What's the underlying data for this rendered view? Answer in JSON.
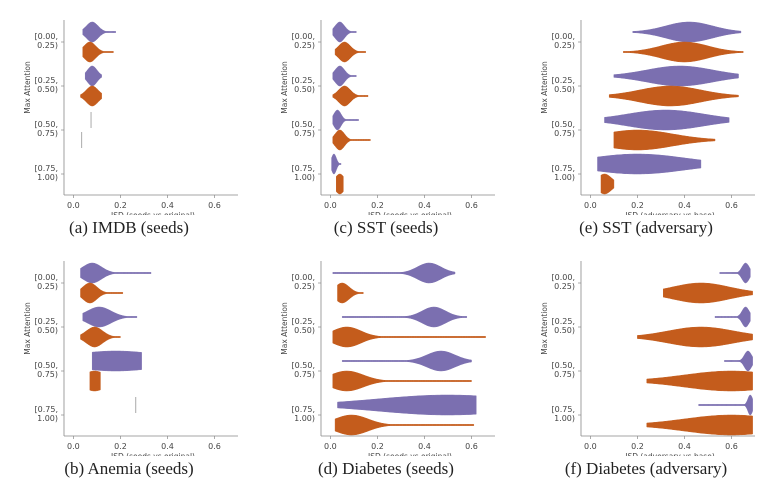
{
  "chart_data": [
    {
      "id": "a",
      "type": "violin",
      "caption": "(a) IMDB (seeds)",
      "xlabel": "JSD (seeds vs original)",
      "ylabel": "Max Attention",
      "xlim": [
        -0.04,
        0.7
      ],
      "xticks": [
        "0.0",
        "0.2",
        "0.4",
        "0.6"
      ],
      "xtick_values": [
        0.0,
        0.2,
        0.4,
        0.6
      ],
      "categories": [
        "[0.00,\n0.25)",
        "[0.25,\n0.50)",
        "[0.50,\n0.75)",
        "[0.75,\n1.00)"
      ],
      "series": [
        {
          "name": "purple",
          "color": "#7b6fb0",
          "violins": [
            {
              "min": 0.04,
              "max": 0.18,
              "peak": 0.08,
              "spread": 0.025
            },
            {
              "min": 0.05,
              "max": 0.12,
              "peak": 0.08,
              "spread": 0.02
            },
            {
              "min": 0.075,
              "max": 0.075,
              "peak": 0.075,
              "spread": 0.0
            },
            null
          ]
        },
        {
          "name": "orange",
          "color": "#c45c1c",
          "violins": [
            {
              "min": 0.04,
              "max": 0.17,
              "peak": 0.07,
              "spread": 0.025
            },
            {
              "min": 0.03,
              "max": 0.12,
              "peak": 0.08,
              "spread": 0.025
            },
            {
              "min": 0.035,
              "max": 0.035,
              "peak": 0.035,
              "spread": 0.0
            },
            null
          ]
        }
      ]
    },
    {
      "id": "c",
      "type": "violin",
      "caption": "(c) SST (seeds)",
      "xlabel": "JSD (seeds vs original)",
      "ylabel": "Max Attention",
      "xlim": [
        -0.04,
        0.7
      ],
      "xticks": [
        "0.0",
        "0.2",
        "0.4",
        "0.6"
      ],
      "xtick_values": [
        0.0,
        0.2,
        0.4,
        0.6
      ],
      "categories": [
        "[0.00,\n0.25)",
        "[0.25,\n0.50)",
        "[0.50,\n0.75)",
        "[0.75,\n1.00)"
      ],
      "series": [
        {
          "name": "purple",
          "color": "#7b6fb0",
          "violins": [
            {
              "min": 0.01,
              "max": 0.11,
              "peak": 0.04,
              "spread": 0.02
            },
            {
              "min": 0.01,
              "max": 0.11,
              "peak": 0.04,
              "spread": 0.02
            },
            {
              "min": 0.01,
              "max": 0.12,
              "peak": 0.03,
              "spread": 0.015
            },
            {
              "min": 0.005,
              "max": 0.045,
              "peak": 0.015,
              "spread": 0.01
            }
          ]
        },
        {
          "name": "orange",
          "color": "#c45c1c",
          "violins": [
            {
              "min": 0.02,
              "max": 0.15,
              "peak": 0.06,
              "spread": 0.025
            },
            {
              "min": 0.01,
              "max": 0.16,
              "peak": 0.06,
              "spread": 0.025
            },
            {
              "min": 0.01,
              "max": 0.17,
              "peak": 0.04,
              "spread": 0.02
            },
            {
              "min": 0.025,
              "max": 0.055,
              "peak": 0.04,
              "spread": 0.02
            }
          ]
        }
      ]
    },
    {
      "id": "e",
      "type": "violin",
      "caption": "(e) SST (adversary)",
      "xlabel": "JSD (adversary vs base)",
      "ylabel": "Max Attention",
      "xlim": [
        -0.04,
        0.7
      ],
      "xticks": [
        "0.0",
        "0.2",
        "0.4",
        "0.6"
      ],
      "xtick_values": [
        0.0,
        0.2,
        0.4,
        0.6
      ],
      "categories": [
        "[0.00,\n0.25)",
        "[0.25,\n0.50)",
        "[0.50,\n0.75)",
        "[0.75,\n1.00)"
      ],
      "series": [
        {
          "name": "purple",
          "color": "#7b6fb0",
          "violins": [
            {
              "min": 0.18,
              "max": 0.64,
              "peak": 0.42,
              "spread": 0.1
            },
            {
              "min": 0.1,
              "max": 0.63,
              "peak": 0.38,
              "spread": 0.14
            },
            {
              "min": 0.06,
              "max": 0.59,
              "peak": 0.32,
              "spread": 0.16
            },
            {
              "min": 0.03,
              "max": 0.47,
              "peak": 0.2,
              "spread": 0.2
            }
          ]
        },
        {
          "name": "orange",
          "color": "#c45c1c",
          "violins": [
            {
              "min": 0.14,
              "max": 0.65,
              "peak": 0.4,
              "spread": 0.1
            },
            {
              "min": 0.08,
              "max": 0.63,
              "peak": 0.34,
              "spread": 0.13
            },
            {
              "min": 0.1,
              "max": 0.53,
              "peak": 0.2,
              "spread": 0.15
            },
            {
              "min": 0.045,
              "max": 0.1,
              "peak": 0.06,
              "spread": 0.03
            }
          ]
        }
      ]
    },
    {
      "id": "b",
      "type": "violin",
      "caption": "(b) Anemia (seeds)",
      "xlabel": "JSD (seeds vs original)",
      "ylabel": "Max Attention",
      "xlim": [
        -0.04,
        0.7
      ],
      "xticks": [
        "0.0",
        "0.2",
        "0.4",
        "0.6"
      ],
      "xtick_values": [
        0.0,
        0.2,
        0.4,
        0.6
      ],
      "categories": [
        "[0.00,\n0.25)",
        "[0.25,\n0.50)",
        "[0.50,\n0.75)",
        "[0.75,\n1.00)"
      ],
      "series": [
        {
          "name": "purple",
          "color": "#7b6fb0",
          "violins": [
            {
              "min": 0.03,
              "max": 0.33,
              "peak": 0.08,
              "spread": 0.04
            },
            {
              "min": 0.04,
              "max": 0.27,
              "peak": 0.11,
              "spread": 0.05
            },
            {
              "min": 0.08,
              "max": 0.29,
              "peak": 0.18,
              "spread": 0.2
            },
            {
              "min": 0.265,
              "max": 0.265,
              "peak": 0.265,
              "spread": 0.0
            }
          ]
        },
        {
          "name": "orange",
          "color": "#c45c1c",
          "violins": [
            {
              "min": 0.03,
              "max": 0.21,
              "peak": 0.07,
              "spread": 0.03
            },
            {
              "min": 0.03,
              "max": 0.2,
              "peak": 0.09,
              "spread": 0.035
            },
            {
              "min": 0.07,
              "max": 0.115,
              "peak": 0.09,
              "spread": 0.05
            },
            null
          ]
        }
      ]
    },
    {
      "id": "d",
      "type": "violin",
      "caption": "(d) Diabetes (seeds)",
      "xlabel": "JSD (seeds vs original)",
      "ylabel": "Max Attention",
      "xlim": [
        -0.04,
        0.7
      ],
      "xticks": [
        "0.0",
        "0.2",
        "0.4",
        "0.6"
      ],
      "xtick_values": [
        0.0,
        0.2,
        0.4,
        0.6
      ],
      "categories": [
        "[0.00,\n0.25)",
        "[0.25,\n0.50)",
        "[0.50,\n0.75)",
        "[0.75,\n1.00)"
      ],
      "series": [
        {
          "name": "purple",
          "color": "#7b6fb0",
          "violins": [
            {
              "min": 0.01,
              "max": 0.53,
              "peak": 0.42,
              "spread": 0.05
            },
            {
              "min": 0.05,
              "max": 0.58,
              "peak": 0.44,
              "spread": 0.05
            },
            {
              "min": 0.05,
              "max": 0.6,
              "peak": 0.47,
              "spread": 0.06
            },
            {
              "min": 0.03,
              "max": 0.62,
              "peak": 0.5,
              "spread": 0.3
            }
          ]
        },
        {
          "name": "orange",
          "color": "#c45c1c",
          "violins": [
            {
              "min": 0.03,
              "max": 0.14,
              "peak": 0.05,
              "spread": 0.03
            },
            {
              "min": 0.01,
              "max": 0.66,
              "peak": 0.07,
              "spread": 0.06
            },
            {
              "min": 0.01,
              "max": 0.6,
              "peak": 0.07,
              "spread": 0.07
            },
            {
              "min": 0.02,
              "max": 0.61,
              "peak": 0.09,
              "spread": 0.07
            }
          ]
        }
      ]
    },
    {
      "id": "f",
      "type": "violin",
      "caption": "(f) Diabetes (adversary)",
      "xlabel": "JSD (adversary vs base)",
      "ylabel": "Max Attention",
      "xlim": [
        -0.04,
        0.7
      ],
      "xticks": [
        "0.0",
        "0.2",
        "0.4",
        "0.6"
      ],
      "xtick_values": [
        0.0,
        0.2,
        0.4,
        0.6
      ],
      "categories": [
        "[0.00,\n0.25)",
        "[0.25,\n0.50)",
        "[0.50,\n0.75)",
        "[0.75,\n1.00)"
      ],
      "series": [
        {
          "name": "purple",
          "color": "#7b6fb0",
          "violins": [
            {
              "min": 0.55,
              "max": 0.68,
              "peak": 0.66,
              "spread": 0.015
            },
            {
              "min": 0.53,
              "max": 0.68,
              "peak": 0.66,
              "spread": 0.015
            },
            {
              "min": 0.57,
              "max": 0.69,
              "peak": 0.67,
              "spread": 0.015
            },
            {
              "min": 0.46,
              "max": 0.69,
              "peak": 0.68,
              "spread": 0.01
            }
          ]
        },
        {
          "name": "orange",
          "color": "#c45c1c",
          "violins": [
            {
              "min": 0.31,
              "max": 0.69,
              "peak": 0.47,
              "spread": 0.12
            },
            {
              "min": 0.2,
              "max": 0.69,
              "peak": 0.47,
              "spread": 0.14
            },
            {
              "min": 0.24,
              "max": 0.69,
              "peak": 0.6,
              "spread": 0.2
            },
            {
              "min": 0.24,
              "max": 0.69,
              "peak": 0.6,
              "spread": 0.2
            }
          ]
        }
      ]
    }
  ]
}
